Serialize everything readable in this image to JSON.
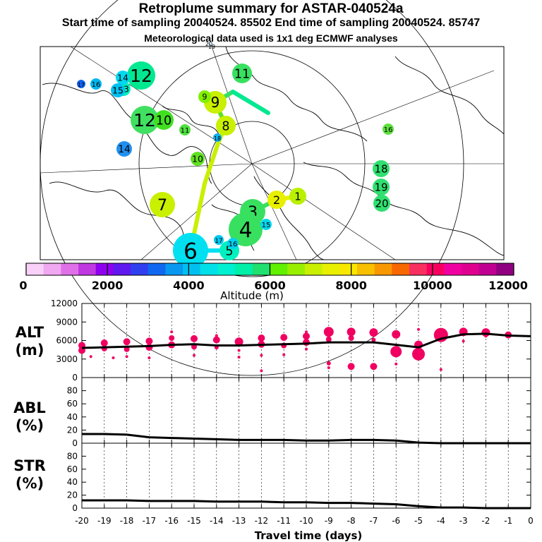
{
  "header": {
    "title": "Retroplume summary for ASTAR-040524a",
    "sampling": "Start time of sampling 20040524. 85502     End time of sampling 20040524. 85747",
    "meteo": "Meteorological data used is 1x1 deg ECMWF analyses"
  },
  "colorbar": {
    "colors": [
      "#f8d0f8",
      "#f0a8f0",
      "#e070e8",
      "#c038e0",
      "#9000f0",
      "#6018f0",
      "#3040f0",
      "#1068f0",
      "#0898f0",
      "#00c0f0",
      "#00e0e8",
      "#00f0d0",
      "#00f0a8",
      "#20e070",
      "#60f000",
      "#98f000",
      "#c8f000",
      "#e8f000",
      "#f8e800",
      "#f8c000",
      "#f89800",
      "#f86800",
      "#f83060",
      "#f80060",
      "#f000a0",
      "#e00090",
      "#c00090",
      "#900080"
    ],
    "tick_labels": [
      "0",
      "2000",
      "4000",
      "6000",
      "8000",
      "10000",
      "12000"
    ],
    "label": "Altitude (m)"
  },
  "map": {
    "plume_labels": [
      {
        "n": "1",
        "c": "#b8f000"
      },
      {
        "n": "2",
        "c": "#e8f000"
      },
      {
        "n": "3",
        "c": "#38e060"
      },
      {
        "n": "4",
        "c": "#38e060"
      },
      {
        "n": "5",
        "c": "#00f0c0"
      },
      {
        "n": "6",
        "c": "#00e0f0"
      },
      {
        "n": "7",
        "c": "#c8f000"
      },
      {
        "n": "8",
        "c": "#c8f000"
      },
      {
        "n": "9",
        "c": "#c8f000"
      },
      {
        "n": "10",
        "c": "#60e020"
      },
      {
        "n": "11",
        "c": "#38e060"
      },
      {
        "n": "12",
        "c": "#00e890"
      },
      {
        "n": "13",
        "c": "#00f0c0"
      },
      {
        "n": "14",
        "c": "#00d8f0"
      },
      {
        "n": "15",
        "c": "#00d8f0"
      },
      {
        "n": "16",
        "c": "#00d0f0"
      },
      {
        "n": "17",
        "c": "#00c8f0"
      },
      {
        "n": "18",
        "c": "#10b0f0"
      },
      {
        "n": "19",
        "c": "#30a0f0"
      },
      {
        "n": "20",
        "c": "#50c0f0"
      },
      {
        "n": "12",
        "c": "#40e060"
      },
      {
        "n": "10",
        "c": "#40e020"
      },
      {
        "n": "9",
        "c": "#80f000"
      },
      {
        "n": "11",
        "c": "#50e040"
      },
      {
        "n": "19",
        "c": "#30e070"
      },
      {
        "n": "18",
        "c": "#30e070"
      },
      {
        "n": "20",
        "c": "#30e070"
      },
      {
        "n": "16",
        "c": "#60e040"
      },
      {
        "n": "14",
        "c": "#2090f0"
      },
      {
        "n": "15",
        "c": "#00c0f0"
      },
      {
        "n": "16",
        "c": "#00b8f0"
      },
      {
        "n": "17",
        "c": "#1060f0"
      }
    ]
  },
  "chart_data": [
    {
      "type": "scatter",
      "panel": "ALT",
      "ylabel": "ALT\n(m)",
      "ylim": [
        0,
        12000
      ],
      "yticks": [
        "0",
        "3000",
        "6000",
        "9000",
        "12000"
      ],
      "xlim": [
        -20,
        0
      ],
      "xticks": [
        "-20",
        "-19",
        "-18",
        "-17",
        "-16",
        "-15",
        "-14",
        "-13",
        "-12",
        "-11",
        "-10",
        "-9",
        "-8",
        "-7",
        "-6",
        "-5",
        "-4",
        "-3",
        "-2",
        "-1",
        "0"
      ],
      "line": {
        "x": [
          -20,
          -19,
          -18,
          -17,
          -16,
          -15,
          -14,
          -13,
          -12,
          -11,
          -10,
          -9,
          -8,
          -7,
          -6,
          -5,
          -4,
          -3,
          -2,
          -1,
          0
        ],
        "y": [
          4800,
          4900,
          5000,
          5100,
          5300,
          5400,
          5200,
          5200,
          5300,
          5400,
          5500,
          5700,
          5700,
          5700,
          5300,
          4900,
          6300,
          7000,
          7100,
          6800,
          6700
        ]
      },
      "points": [
        {
          "x": -20,
          "y": 5200,
          "s": 5
        },
        {
          "x": -20,
          "y": 4400,
          "s": 5
        },
        {
          "x": -19.6,
          "y": 3400,
          "s": 2
        },
        {
          "x": -19,
          "y": 5600,
          "s": 5
        },
        {
          "x": -19,
          "y": 4700,
          "s": 4
        },
        {
          "x": -18.6,
          "y": 3200,
          "s": 2
        },
        {
          "x": -18,
          "y": 5800,
          "s": 5
        },
        {
          "x": -18,
          "y": 4600,
          "s": 4
        },
        {
          "x": -18,
          "y": 3400,
          "s": 2
        },
        {
          "x": -17,
          "y": 5900,
          "s": 5
        },
        {
          "x": -17,
          "y": 4900,
          "s": 5
        },
        {
          "x": -17,
          "y": 3200,
          "s": 2
        },
        {
          "x": -16,
          "y": 6400,
          "s": 4
        },
        {
          "x": -16,
          "y": 5300,
          "s": 5
        },
        {
          "x": -16,
          "y": 7400,
          "s": 2
        },
        {
          "x": -15,
          "y": 6300,
          "s": 5
        },
        {
          "x": -15,
          "y": 5000,
          "s": 4
        },
        {
          "x": -15,
          "y": 3600,
          "s": 2
        },
        {
          "x": -14,
          "y": 6100,
          "s": 5
        },
        {
          "x": -14,
          "y": 4900,
          "s": 3
        },
        {
          "x": -14,
          "y": 6800,
          "s": 2
        },
        {
          "x": -13,
          "y": 5800,
          "s": 6
        },
        {
          "x": -13,
          "y": 4400,
          "s": 2
        },
        {
          "x": -13,
          "y": 3300,
          "s": 2
        },
        {
          "x": -12,
          "y": 6400,
          "s": 5
        },
        {
          "x": -12,
          "y": 5400,
          "s": 5
        },
        {
          "x": -12,
          "y": 3600,
          "s": 2
        },
        {
          "x": -12,
          "y": 1100,
          "s": 2
        },
        {
          "x": -11,
          "y": 6500,
          "s": 5
        },
        {
          "x": -11,
          "y": 5200,
          "s": 4
        },
        {
          "x": -11,
          "y": 3700,
          "s": 2
        },
        {
          "x": -10,
          "y": 6700,
          "s": 5
        },
        {
          "x": -10,
          "y": 5700,
          "s": 5
        },
        {
          "x": -10,
          "y": 7400,
          "s": 2
        },
        {
          "x": -10,
          "y": 4600,
          "s": 2
        },
        {
          "x": -9,
          "y": 7400,
          "s": 7
        },
        {
          "x": -9,
          "y": 6200,
          "s": 4
        },
        {
          "x": -9,
          "y": 2300,
          "s": 3
        },
        {
          "x": -9,
          "y": 1600,
          "s": 2
        },
        {
          "x": -8,
          "y": 7400,
          "s": 6
        },
        {
          "x": -8,
          "y": 6400,
          "s": 4
        },
        {
          "x": -8,
          "y": 1800,
          "s": 5
        },
        {
          "x": -7,
          "y": 7300,
          "s": 6
        },
        {
          "x": -7,
          "y": 6100,
          "s": 3
        },
        {
          "x": -7,
          "y": 1800,
          "s": 5
        },
        {
          "x": -6,
          "y": 7000,
          "s": 6
        },
        {
          "x": -6,
          "y": 4200,
          "s": 8
        },
        {
          "x": -6,
          "y": 2200,
          "s": 2
        },
        {
          "x": -5,
          "y": 7800,
          "s": 2
        },
        {
          "x": -5,
          "y": 5300,
          "s": 6
        },
        {
          "x": -5,
          "y": 3800,
          "s": 9
        },
        {
          "x": -4,
          "y": 6900,
          "s": 10
        },
        {
          "x": -4,
          "y": 1300,
          "s": 2
        },
        {
          "x": -3,
          "y": 7400,
          "s": 6
        },
        {
          "x": -3,
          "y": 5900,
          "s": 2
        },
        {
          "x": -2,
          "y": 7300,
          "s": 6
        },
        {
          "x": -2,
          "y": 6700,
          "s": 2
        },
        {
          "x": -1,
          "y": 6900,
          "s": 5
        }
      ],
      "point_color": "#f00060"
    },
    {
      "type": "line",
      "panel": "ABL",
      "ylabel": "ABL\n(%)",
      "ylim": [
        0,
        100
      ],
      "yticks": [
        "0",
        "20",
        "40",
        "60",
        "80"
      ],
      "x": [
        -20,
        -19,
        -18,
        -17,
        -16,
        -15,
        -14,
        -13,
        -12,
        -11,
        -10,
        -9,
        -8,
        -7,
        -6,
        -5,
        -4,
        -3,
        -2,
        -1,
        0
      ],
      "y": [
        14,
        14,
        13,
        9,
        8,
        7,
        6,
        5,
        5,
        5,
        4,
        4,
        5,
        5,
        4,
        1,
        0,
        0,
        0,
        0,
        0
      ]
    },
    {
      "type": "line",
      "panel": "STR",
      "ylabel": "STR\n(%)",
      "ylim": [
        0,
        100
      ],
      "yticks": [
        "0",
        "20",
        "40",
        "60",
        "80"
      ],
      "x": [
        -20,
        -19,
        -18,
        -17,
        -16,
        -15,
        -14,
        -13,
        -12,
        -11,
        -10,
        -9,
        -8,
        -7,
        -6,
        -5,
        -4,
        -3,
        -2,
        -1,
        0
      ],
      "y": [
        12,
        12,
        12,
        11,
        11,
        11,
        10,
        10,
        10,
        9,
        9,
        8,
        8,
        7,
        6,
        3,
        1,
        1,
        0,
        0,
        0
      ]
    }
  ],
  "axes": {
    "xlabel": "Travel time (days)"
  }
}
